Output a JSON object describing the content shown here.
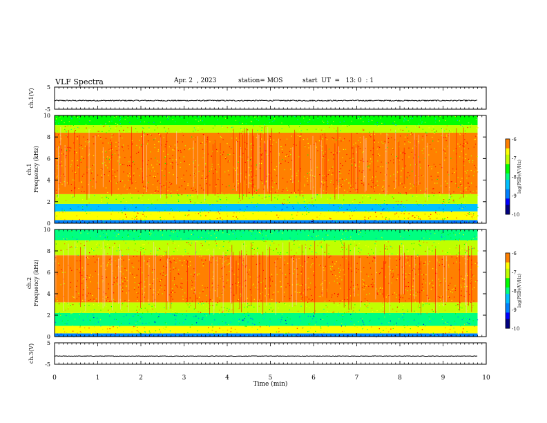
{
  "header": {
    "title": "VLF Spectra",
    "date": "Apr. 2  , 2023",
    "station": "station= MOS",
    "start_ut": "start  UT  =   13: 0  : 1"
  },
  "colors": {
    "spectrogram_scale": [
      "#000080",
      "#0000ff",
      "#0080ff",
      "#00c0ff",
      "#00ff80",
      "#00ff00",
      "#c0ff00",
      "#ffff00",
      "#ff8000",
      "#ff0000",
      "#ffd0d0",
      "#ffffff"
    ]
  },
  "chart_data": [
    {
      "type": "line",
      "id": "ch1-waveform",
      "ylabel": "ch.1(V)",
      "ylim": [
        -5,
        5
      ],
      "yticks": [
        "5",
        "-5"
      ],
      "xlim": [
        0,
        10
      ],
      "series": [
        {
          "x": [
            0,
            9.8
          ],
          "y": [
            -1.1,
            -1.1
          ],
          "noise_amplitude": 0.25
        }
      ]
    },
    {
      "type": "heatmap",
      "id": "ch1-spectrogram",
      "ylabel": "ch.1\nFrequency (kHz)",
      "ylim": [
        0,
        10
      ],
      "yticks": [
        "0",
        "2",
        "4",
        "6",
        "8",
        "10"
      ],
      "xlim": [
        0,
        10
      ],
      "data_end_min": 9.8,
      "colorbar": {
        "label": "log(PSD)(V²/Hz)",
        "range": [
          -10,
          -6
        ],
        "ticks": [
          "-6",
          "-7",
          "-8",
          "-9",
          "-10"
        ]
      },
      "bands": [
        {
          "from": 0.0,
          "to": 0.3,
          "level": -8.9
        },
        {
          "from": 0.3,
          "to": 1.1,
          "level": -6.6
        },
        {
          "from": 1.1,
          "to": 1.8,
          "level": -8.4
        },
        {
          "from": 1.8,
          "to": 2.7,
          "level": -7.0
        },
        {
          "from": 2.7,
          "to": 8.4,
          "level": -6.3
        },
        {
          "from": 8.4,
          "to": 9.1,
          "level": -6.9
        },
        {
          "from": 9.1,
          "to": 10.0,
          "level": -7.7
        }
      ]
    },
    {
      "type": "heatmap",
      "id": "ch2-spectrogram",
      "ylabel": "ch.2\nFrequency (kHz)",
      "ylim": [
        0,
        10
      ],
      "yticks": [
        "0",
        "2",
        "4",
        "6",
        "8",
        "10"
      ],
      "xlim": [
        0,
        10
      ],
      "data_end_min": 9.8,
      "colorbar": {
        "label": "log(PSD)(V²/Hz)",
        "range": [
          -10,
          -6
        ],
        "ticks": [
          "-6",
          "-7",
          "-8",
          "-9",
          "-10"
        ]
      },
      "bands": [
        {
          "from": 0.0,
          "to": 0.3,
          "level": -8.9
        },
        {
          "from": 0.3,
          "to": 1.0,
          "level": -6.8
        },
        {
          "from": 1.0,
          "to": 2.2,
          "level": -8.2
        },
        {
          "from": 2.2,
          "to": 3.2,
          "level": -7.0
        },
        {
          "from": 3.2,
          "to": 7.6,
          "level": -6.2
        },
        {
          "from": 7.6,
          "to": 9.0,
          "level": -6.9
        },
        {
          "from": 9.0,
          "to": 10.0,
          "level": -7.8
        }
      ]
    },
    {
      "type": "line",
      "id": "ch3-waveform",
      "ylabel": "ch.3(V)",
      "ylim": [
        -5,
        5
      ],
      "yticks": [
        "5",
        "-5"
      ],
      "xlim": [
        0,
        10
      ],
      "series": [
        {
          "x": [
            0,
            9.8
          ],
          "y": [
            -1.2,
            -1.2
          ],
          "noise_amplitude": 0.12
        }
      ]
    }
  ],
  "xaxis": {
    "label": "Time (min)",
    "ticks": [
      "0",
      "1",
      "2",
      "3",
      "4",
      "5",
      "6",
      "7",
      "8",
      "9",
      "10"
    ]
  }
}
